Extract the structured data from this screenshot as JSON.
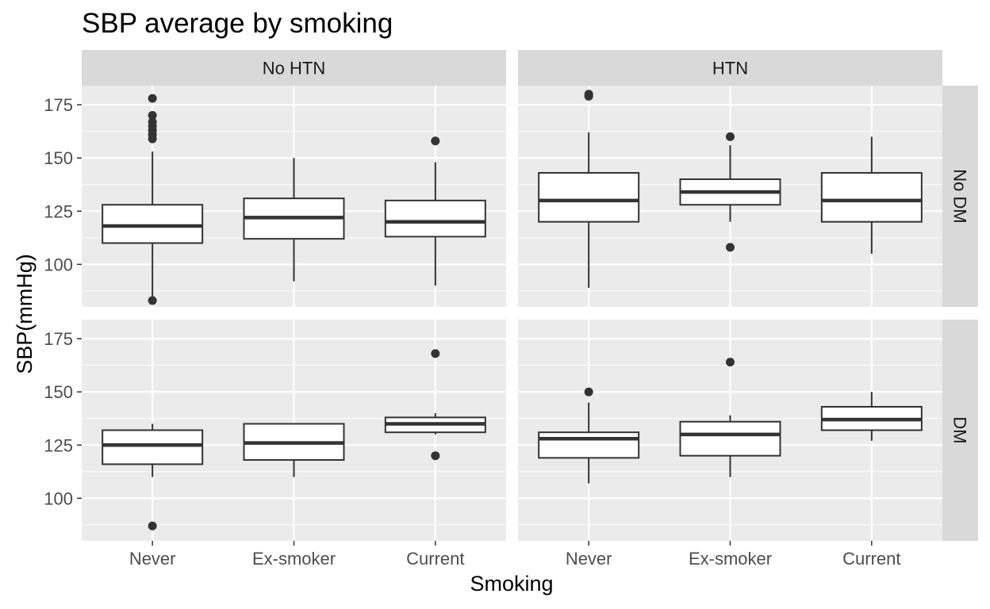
{
  "chart_data": {
    "type": "boxplot",
    "title": "SBP average by smoking",
    "xlabel": "Smoking",
    "ylabel": "SBP(mmHg)",
    "categories": [
      "Never",
      "Ex-smoker",
      "Current"
    ],
    "yticks": [
      100,
      125,
      150,
      175
    ],
    "ylim": [
      80,
      184
    ],
    "grid": true,
    "facet_columns": [
      "No HTN",
      "HTN"
    ],
    "facet_rows": [
      "No DM",
      "DM"
    ],
    "panels": [
      {
        "col": "No HTN",
        "row": "No DM",
        "boxes": [
          {
            "category": "Never",
            "whisker_low": 85,
            "q1": 110,
            "median": 118,
            "q3": 128,
            "whisker_high": 153,
            "outliers": [
              83,
              159,
              161,
              163,
              165,
              167,
              170,
              178
            ]
          },
          {
            "category": "Ex-smoker",
            "whisker_low": 92,
            "q1": 112,
            "median": 122,
            "q3": 131,
            "whisker_high": 150,
            "outliers": []
          },
          {
            "category": "Current",
            "whisker_low": 90,
            "q1": 113,
            "median": 120,
            "q3": 130,
            "whisker_high": 148,
            "outliers": [
              158
            ]
          }
        ]
      },
      {
        "col": "HTN",
        "row": "No DM",
        "boxes": [
          {
            "category": "Never",
            "whisker_low": 89,
            "q1": 120,
            "median": 130,
            "q3": 143,
            "whisker_high": 162,
            "outliers": [
              179,
              180
            ]
          },
          {
            "category": "Ex-smoker",
            "whisker_low": 120,
            "q1": 128,
            "median": 134,
            "q3": 140,
            "whisker_high": 156,
            "outliers": [
              108,
              160
            ]
          },
          {
            "category": "Current",
            "whisker_low": 105,
            "q1": 120,
            "median": 130,
            "q3": 143,
            "whisker_high": 160,
            "outliers": []
          }
        ]
      },
      {
        "col": "No HTN",
        "row": "DM",
        "boxes": [
          {
            "category": "Never",
            "whisker_low": 110,
            "q1": 116,
            "median": 125,
            "q3": 132,
            "whisker_high": 135,
            "outliers": [
              87
            ]
          },
          {
            "category": "Ex-smoker",
            "whisker_low": 110,
            "q1": 118,
            "median": 126,
            "q3": 135,
            "whisker_high": 135,
            "outliers": []
          },
          {
            "category": "Current",
            "whisker_low": 130,
            "q1": 131,
            "median": 135,
            "q3": 138,
            "whisker_high": 140,
            "outliers": [
              120,
              168
            ]
          }
        ]
      },
      {
        "col": "HTN",
        "row": "DM",
        "boxes": [
          {
            "category": "Never",
            "whisker_low": 107,
            "q1": 119,
            "median": 128,
            "q3": 131,
            "whisker_high": 145,
            "outliers": [
              150
            ]
          },
          {
            "category": "Ex-smoker",
            "whisker_low": 110,
            "q1": 120,
            "median": 130,
            "q3": 136,
            "whisker_high": 139,
            "outliers": [
              164
            ]
          },
          {
            "category": "Current",
            "whisker_low": 127,
            "q1": 132,
            "median": 137,
            "q3": 143,
            "whisker_high": 150,
            "outliers": []
          }
        ]
      }
    ],
    "colors": {
      "panel_background": "#ebebeb",
      "strip_background": "#d9d9d9",
      "grid": "#ffffff",
      "box_fill": "#ffffff",
      "box_line": "#333333"
    }
  }
}
